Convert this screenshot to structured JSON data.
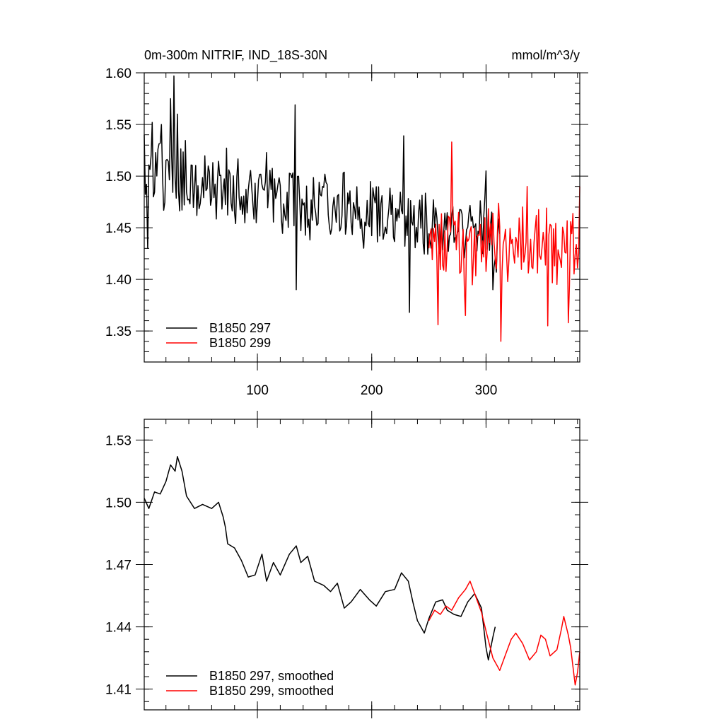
{
  "chart_data": [
    {
      "type": "line",
      "title_left": "0m-300m NITRIF, IND_18S-30N",
      "title_right": "mmol/m^3/y",
      "xlim": [
        1,
        382
      ],
      "ylim": [
        1.32,
        1.6
      ],
      "y_ticks": [
        1.35,
        1.4,
        1.45,
        1.5,
        1.55,
        1.6
      ],
      "y_tick_labels": [
        "1.35",
        "1.40",
        "1.45",
        "1.50",
        "1.55",
        "1.60"
      ],
      "x_ticks": [
        100,
        200,
        300
      ],
      "x_tick_labels": [
        "100",
        "200",
        "300"
      ],
      "series": [
        {
          "name": "B1850 297",
          "color": "#000000",
          "x_start": 1,
          "x_end": 312,
          "mean_start": 1.505,
          "mean_end": 1.44,
          "amplitude": 0.035,
          "seed": 297,
          "anchors": [
            [
              1,
              1.54
            ],
            [
              4,
              1.43
            ],
            [
              8,
              1.552
            ],
            [
              16,
              1.55
            ],
            [
              24,
              1.575
            ],
            [
              27,
              1.597
            ],
            [
              30,
              1.56
            ],
            [
              133,
              1.569
            ],
            [
              134,
              1.39
            ],
            [
              228,
              1.539
            ],
            [
              233,
              1.368
            ],
            [
              297,
              1.425
            ],
            [
              300,
              1.505
            ],
            [
              306,
              1.39
            ]
          ]
        },
        {
          "name": "B1850 299",
          "color": "#ff0000",
          "x_start": 250,
          "x_end": 382,
          "mean_start": 1.44,
          "mean_end": 1.43,
          "amplitude": 0.04,
          "seed": 299,
          "anchors": [
            [
              258,
              1.356
            ],
            [
              270,
              1.533
            ],
            [
              282,
              1.365
            ],
            [
              313,
              1.34
            ],
            [
              336,
              1.49
            ],
            [
              354,
              1.355
            ],
            [
              372,
              1.358
            ],
            [
              382,
              1.49
            ]
          ]
        }
      ],
      "legend": [
        "B1850 297",
        "B1850 299"
      ]
    },
    {
      "type": "line",
      "title_left": "",
      "title_right": "",
      "xlim": [
        1,
        382
      ],
      "ylim": [
        1.4,
        1.54
      ],
      "y_ticks": [
        1.41,
        1.44,
        1.47,
        1.5,
        1.53
      ],
      "y_tick_labels": [
        "1.41",
        "1.44",
        "1.47",
        "1.50",
        "1.53"
      ],
      "x_ticks": [
        100,
        200,
        300
      ],
      "x_tick_labels": [],
      "series": [
        {
          "name": "B1850 297, smoothed",
          "color": "#000000",
          "points": [
            [
              1,
              1.502
            ],
            [
              5,
              1.497
            ],
            [
              10,
              1.505
            ],
            [
              15,
              1.504
            ],
            [
              20,
              1.51
            ],
            [
              24,
              1.518
            ],
            [
              28,
              1.515
            ],
            [
              30,
              1.522
            ],
            [
              34,
              1.515
            ],
            [
              38,
              1.503
            ],
            [
              45,
              1.497
            ],
            [
              52,
              1.499
            ],
            [
              60,
              1.497
            ],
            [
              66,
              1.5
            ],
            [
              70,
              1.493
            ],
            [
              72,
              1.488
            ],
            [
              74,
              1.48
            ],
            [
              80,
              1.478
            ],
            [
              86,
              1.472
            ],
            [
              92,
              1.464
            ],
            [
              98,
              1.465
            ],
            [
              104,
              1.475
            ],
            [
              108,
              1.462
            ],
            [
              114,
              1.471
            ],
            [
              120,
              1.465
            ],
            [
              128,
              1.475
            ],
            [
              134,
              1.479
            ],
            [
              138,
              1.471
            ],
            [
              144,
              1.474
            ],
            [
              150,
              1.462
            ],
            [
              158,
              1.46
            ],
            [
              164,
              1.457
            ],
            [
              170,
              1.461
            ],
            [
              176,
              1.449
            ],
            [
              182,
              1.452
            ],
            [
              190,
              1.458
            ],
            [
              198,
              1.453
            ],
            [
              204,
              1.45
            ],
            [
              212,
              1.457
            ],
            [
              220,
              1.458
            ],
            [
              226,
              1.466
            ],
            [
              232,
              1.462
            ],
            [
              236,
              1.452
            ],
            [
              240,
              1.443
            ],
            [
              246,
              1.437
            ],
            [
              250,
              1.444
            ],
            [
              256,
              1.452
            ],
            [
              262,
              1.453
            ],
            [
              266,
              1.448
            ],
            [
              272,
              1.446
            ],
            [
              278,
              1.445
            ],
            [
              284,
              1.452
            ],
            [
              290,
              1.456
            ],
            [
              296,
              1.449
            ],
            [
              300,
              1.43
            ],
            [
              302,
              1.424
            ],
            [
              306,
              1.435
            ],
            [
              308,
              1.44
            ]
          ]
        },
        {
          "name": "B1850 299, smoothed",
          "color": "#ff0000",
          "points": [
            [
              250,
              1.443
            ],
            [
              255,
              1.448
            ],
            [
              260,
              1.446
            ],
            [
              265,
              1.45
            ],
            [
              270,
              1.448
            ],
            [
              276,
              1.454
            ],
            [
              282,
              1.458
            ],
            [
              286,
              1.462
            ],
            [
              290,
              1.456
            ],
            [
              296,
              1.447
            ],
            [
              300,
              1.438
            ],
            [
              306,
              1.425
            ],
            [
              312,
              1.419
            ],
            [
              318,
              1.428
            ],
            [
              322,
              1.434
            ],
            [
              326,
              1.437
            ],
            [
              332,
              1.432
            ],
            [
              338,
              1.424
            ],
            [
              344,
              1.428
            ],
            [
              348,
              1.436
            ],
            [
              352,
              1.434
            ],
            [
              356,
              1.426
            ],
            [
              362,
              1.429
            ],
            [
              366,
              1.439
            ],
            [
              368,
              1.445
            ],
            [
              372,
              1.436
            ],
            [
              374,
              1.43
            ],
            [
              378,
              1.412
            ],
            [
              380,
              1.418
            ],
            [
              382,
              1.428
            ]
          ]
        }
      ],
      "legend": [
        "B1850 297, smoothed",
        "B1850 299, smoothed"
      ]
    }
  ]
}
